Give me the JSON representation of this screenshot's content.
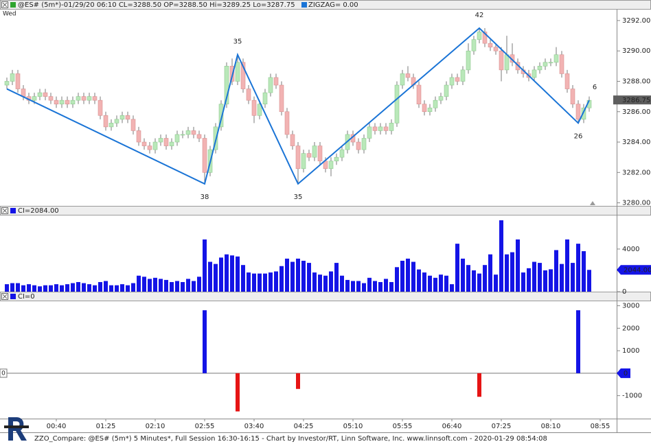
{
  "chart_data": [
    {
      "type": "candlestick",
      "title": "@ES# (5m*)-01/29/20 06:10 CL=3288.50 OP=3288.50 Hi=3289.25 Lo=3287.75",
      "day_label": "Wed",
      "up_color": "#b9e8b9",
      "down_color": "#f2b3b3",
      "open": [
        3287.75,
        3288.0,
        3288.5,
        3287.5,
        3287.0,
        3286.75,
        3287.0,
        3287.25,
        3287.0,
        3286.75,
        3286.5,
        3286.75,
        3286.5,
        3286.75,
        3287.0,
        3286.75,
        3287.0,
        3286.75,
        3285.75,
        3285.0,
        3285.25,
        3285.5,
        3285.75,
        3285.5,
        3284.75,
        3284.0,
        3283.75,
        3283.5,
        3284.0,
        3284.25,
        3283.75,
        3284.0,
        3284.5,
        3284.5,
        3284.75,
        3284.5,
        3284.25,
        3282.0,
        3283.5,
        3285.0,
        3286.5,
        3289.0,
        3288.0,
        3289.25,
        3287.5,
        3286.75,
        3285.75,
        3286.5,
        3287.25,
        3288.25,
        3287.75,
        3286.0,
        3284.5,
        3283.75,
        3282.25,
        3283.25,
        3283.0,
        3283.75,
        3282.75,
        3282.25,
        3282.75,
        3283.0,
        3283.5,
        3284.5,
        3284.0,
        3283.5,
        3284.25,
        3285.0,
        3284.75,
        3285.0,
        3284.75,
        3285.25,
        3287.75,
        3288.5,
        3288.25,
        3287.75,
        3286.5,
        3286.0,
        3286.25,
        3286.75,
        3287.0,
        3287.75,
        3288.25,
        3288.0,
        3288.75,
        3290.0,
        3290.75,
        3291.25,
        3290.5,
        3290.25,
        3290.0,
        3288.75,
        3289.75,
        3289.25,
        3288.75,
        3288.5,
        3288.25,
        3288.75,
        3289.0,
        3289.25,
        3289.25,
        3289.75,
        3288.5,
        3287.5,
        3286.5,
        3285.5,
        3286.25
      ],
      "high": [
        3288.25,
        3288.75,
        3288.75,
        3287.75,
        3287.25,
        3287.25,
        3287.5,
        3287.5,
        3287.25,
        3287.0,
        3287.0,
        3287.0,
        3287.0,
        3287.25,
        3287.25,
        3287.25,
        3287.25,
        3287.0,
        3286.0,
        3285.5,
        3285.75,
        3286.0,
        3286.0,
        3285.75,
        3285.0,
        3284.25,
        3284.0,
        3284.25,
        3284.5,
        3284.5,
        3284.25,
        3284.75,
        3284.75,
        3285.0,
        3285.0,
        3284.75,
        3284.5,
        3283.75,
        3285.25,
        3286.75,
        3289.25,
        3289.5,
        3289.75,
        3289.5,
        3287.75,
        3287.0,
        3286.75,
        3287.5,
        3288.5,
        3288.5,
        3288.0,
        3286.25,
        3284.75,
        3284.0,
        3283.5,
        3283.5,
        3284.0,
        3284.0,
        3283.0,
        3283.0,
        3283.25,
        3283.75,
        3284.75,
        3284.75,
        3284.25,
        3284.5,
        3285.25,
        3285.25,
        3285.25,
        3285.25,
        3285.5,
        3288.0,
        3288.75,
        3289.0,
        3288.5,
        3288.0,
        3286.75,
        3286.5,
        3287.0,
        3287.25,
        3288.0,
        3288.5,
        3288.5,
        3289.0,
        3290.5,
        3291.0,
        3291.5,
        3291.5,
        3290.75,
        3290.5,
        3290.25,
        3291.0,
        3290.5,
        3289.5,
        3289.0,
        3288.75,
        3289.0,
        3289.25,
        3289.5,
        3289.5,
        3290.25,
        3290.0,
        3288.75,
        3287.75,
        3286.75,
        3286.5,
        3287.0
      ],
      "low": [
        3287.5,
        3287.75,
        3287.25,
        3286.75,
        3286.5,
        3286.5,
        3286.75,
        3286.75,
        3286.5,
        3286.25,
        3286.25,
        3286.25,
        3286.25,
        3286.5,
        3286.5,
        3286.5,
        3286.5,
        3285.5,
        3284.75,
        3284.75,
        3285.0,
        3285.25,
        3285.25,
        3284.5,
        3283.75,
        3283.5,
        3283.25,
        3283.25,
        3283.75,
        3283.5,
        3283.5,
        3283.75,
        3284.25,
        3284.25,
        3284.25,
        3284.0,
        3281.25,
        3281.75,
        3283.25,
        3284.75,
        3286.25,
        3287.75,
        3287.75,
        3287.25,
        3286.5,
        3285.25,
        3285.5,
        3286.25,
        3287.0,
        3287.5,
        3285.75,
        3284.25,
        3283.5,
        3281.25,
        3282.0,
        3282.75,
        3282.75,
        3282.5,
        3282.0,
        3281.75,
        3282.5,
        3282.75,
        3283.25,
        3283.75,
        3283.25,
        3283.25,
        3284.0,
        3284.5,
        3284.5,
        3284.5,
        3284.5,
        3285.0,
        3287.5,
        3288.0,
        3287.5,
        3286.25,
        3285.75,
        3285.75,
        3286.0,
        3286.5,
        3286.75,
        3287.5,
        3287.75,
        3287.75,
        3288.5,
        3289.75,
        3290.5,
        3290.25,
        3290.0,
        3289.75,
        3288.0,
        3288.5,
        3289.0,
        3288.5,
        3288.25,
        3288.0,
        3288.0,
        3288.5,
        3288.75,
        3289.0,
        3289.0,
        3288.25,
        3287.25,
        3286.25,
        3285.25,
        3285.25,
        3286.0
      ],
      "close": [
        3288.0,
        3288.5,
        3287.5,
        3287.0,
        3286.75,
        3287.0,
        3287.25,
        3287.0,
        3286.75,
        3286.5,
        3286.75,
        3286.5,
        3286.75,
        3287.0,
        3286.75,
        3287.0,
        3286.75,
        3285.75,
        3285.0,
        3285.25,
        3285.5,
        3285.75,
        3285.5,
        3284.75,
        3284.0,
        3283.75,
        3283.5,
        3284.0,
        3284.25,
        3283.75,
        3284.0,
        3284.5,
        3284.5,
        3284.75,
        3284.5,
        3284.25,
        3282.0,
        3283.5,
        3285.0,
        3286.5,
        3289.0,
        3288.0,
        3289.25,
        3287.5,
        3286.75,
        3285.75,
        3286.5,
        3287.25,
        3288.25,
        3287.75,
        3286.0,
        3284.5,
        3283.75,
        3282.25,
        3283.25,
        3283.0,
        3283.75,
        3282.75,
        3282.25,
        3282.75,
        3283.0,
        3283.5,
        3284.5,
        3284.0,
        3283.5,
        3284.25,
        3285.0,
        3284.75,
        3285.0,
        3284.75,
        3285.25,
        3287.75,
        3288.5,
        3288.25,
        3287.75,
        3286.5,
        3286.0,
        3286.25,
        3286.75,
        3287.0,
        3287.75,
        3288.25,
        3288.0,
        3288.75,
        3290.0,
        3290.75,
        3291.25,
        3290.5,
        3290.25,
        3290.0,
        3288.75,
        3289.75,
        3289.25,
        3288.75,
        3288.5,
        3288.25,
        3288.75,
        3289.0,
        3289.25,
        3289.25,
        3289.75,
        3288.5,
        3287.5,
        3286.5,
        3285.5,
        3286.25,
        3286.75
      ],
      "ylim": [
        3279.8,
        3292.72
      ],
      "yticks": [
        {
          "value": 3280,
          "label": "3280.00"
        },
        {
          "value": 3282,
          "label": "3282.00"
        },
        {
          "value": 3284,
          "label": "3284.00"
        },
        {
          "value": 3286,
          "label": "3286.00"
        },
        {
          "value": 3288,
          "label": "3288.00"
        },
        {
          "value": 3290,
          "label": "3290.00"
        },
        {
          "value": 3292,
          "label": "3292.00"
        }
      ],
      "last_value": {
        "value": 3286.75,
        "label": "3286.75"
      },
      "zigzag": {
        "name": "ZIGZAG= 0.00",
        "color": "#1a74d6",
        "x": [
          0,
          36,
          42,
          53,
          86,
          104,
          106
        ],
        "values": [
          3287.5,
          3281.25,
          3289.75,
          3281.25,
          3291.5,
          3285.25,
          3286.75
        ],
        "labels": [
          null,
          "38",
          "35",
          "35",
          "42",
          "26",
          "6"
        ]
      }
    },
    {
      "type": "bar",
      "title": "CI=2084.00",
      "color": "#1414e6",
      "values": [
        700,
        800,
        800,
        600,
        700,
        600,
        500,
        600,
        600,
        700,
        600,
        700,
        800,
        900,
        800,
        700,
        600,
        900,
        1000,
        600,
        600,
        700,
        600,
        800,
        1500,
        1400,
        1200,
        1300,
        1200,
        1100,
        900,
        1000,
        900,
        1200,
        1000,
        1400,
        4900,
        2800,
        2600,
        3200,
        3500,
        3400,
        3300,
        2500,
        1800,
        1700,
        1700,
        1700,
        1800,
        1900,
        2400,
        3100,
        2800,
        3100,
        2900,
        2700,
        1800,
        1600,
        1500,
        1900,
        2700,
        1500,
        1100,
        1000,
        1000,
        800,
        1300,
        1000,
        900,
        1200,
        900,
        2300,
        2900,
        3100,
        2800,
        2084,
        1800,
        1500,
        1300,
        1600,
        1500,
        700,
        4500,
        3100,
        2500,
        2000,
        1700,
        2500,
        3500,
        1600,
        6700,
        3500,
        3700,
        4900,
        1800,
        2200,
        2800,
        2700,
        2000,
        2100,
        3900,
        2600,
        4900,
        2700,
        4500,
        3800,
        2044
      ],
      "ylim": [
        0,
        7150
      ],
      "yticks": [
        0,
        4000
      ],
      "last_value": {
        "value": 2044,
        "label": "2044.00"
      }
    },
    {
      "type": "bar",
      "title": "CI=0",
      "pos_color": "#1414e6",
      "neg_color": "#e61414",
      "categories": [
        null,
        null,
        null,
        null,
        null,
        null,
        null,
        null,
        null,
        "00:40",
        null,
        null,
        null,
        null,
        null,
        null,
        null,
        null,
        "01:25",
        null,
        null,
        null,
        null,
        null,
        null,
        null,
        null,
        "02:10",
        null,
        null,
        null,
        null,
        null,
        null,
        null,
        null,
        "02:55",
        null,
        null,
        null,
        null,
        null,
        null,
        null,
        null,
        "03:40",
        null,
        null,
        null,
        null,
        null,
        null,
        null,
        null,
        "04:25",
        null,
        null,
        null,
        null,
        null,
        null,
        null,
        null,
        "05:10",
        null,
        null,
        null,
        null,
        null,
        null,
        null,
        null,
        "05:55",
        null,
        null,
        null,
        null,
        null,
        null,
        null,
        null,
        "06:40",
        null,
        null,
        null,
        null,
        null,
        null,
        null,
        null,
        "07:25",
        null,
        null,
        null,
        null,
        null,
        null,
        null,
        null,
        "08:10",
        null,
        null,
        null,
        null,
        null,
        null,
        null,
        null,
        "08:55"
      ],
      "values": [
        0,
        0,
        0,
        0,
        0,
        0,
        0,
        0,
        0,
        0,
        0,
        0,
        0,
        0,
        0,
        0,
        0,
        0,
        0,
        0,
        0,
        0,
        0,
        0,
        0,
        0,
        0,
        0,
        0,
        0,
        0,
        0,
        0,
        0,
        0,
        0,
        2800,
        0,
        0,
        0,
        0,
        0,
        -1700,
        0,
        0,
        0,
        0,
        0,
        0,
        0,
        0,
        0,
        0,
        -700,
        0,
        0,
        0,
        0,
        0,
        0,
        0,
        0,
        0,
        0,
        0,
        0,
        0,
        0,
        0,
        0,
        0,
        0,
        0,
        0,
        0,
        0,
        0,
        0,
        0,
        0,
        0,
        0,
        0,
        0,
        0,
        0,
        -1050,
        0,
        0,
        0,
        0,
        0,
        0,
        0,
        0,
        0,
        0,
        0,
        0,
        0,
        0,
        0,
        0,
        0,
        2800,
        0,
        0,
        null,
        null
      ],
      "ylim": [
        -2020,
        3200
      ],
      "yticks": [
        -1000,
        1000,
        2000,
        3000
      ],
      "reference_line": 0,
      "last_value": 0
    }
  ],
  "footer": "ZZO_Compare: @ES# (5m*) 5 Minutes*, Full Session 16:30-16:15 - Chart by Investor/RT, Linn Software, Inc. www.linnsoft.com - 2020-01-29 08:54:08"
}
